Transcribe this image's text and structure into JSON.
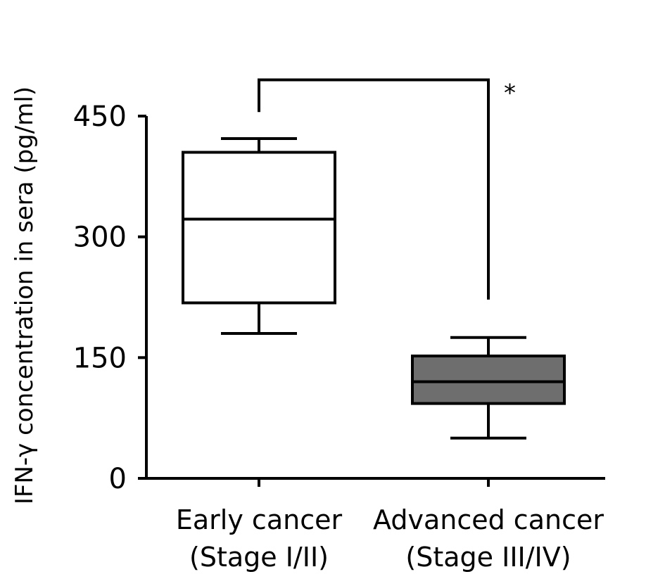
{
  "chart_data": {
    "type": "box",
    "ylabel": "IFN-γ concentration in sera (pg/ml)",
    "ylim": [
      0,
      450
    ],
    "yticks": [
      0,
      150,
      300,
      450
    ],
    "categories": [
      {
        "line1": "Early cancer",
        "line2": "(Stage I/II)"
      },
      {
        "line1": "Advanced cancer",
        "line2": "(Stage III/IV)"
      }
    ],
    "boxes": [
      {
        "min": 180,
        "q1": 218,
        "median": 322,
        "q3": 405,
        "max": 422,
        "fill": "#ffffff"
      },
      {
        "min": 50,
        "q1": 93,
        "median": 120,
        "q3": 152,
        "max": 175,
        "fill": "#6e6e6e"
      }
    ],
    "significance": {
      "label": "*",
      "bracket_top": 495,
      "left_end": 455,
      "right_end": 222
    }
  }
}
